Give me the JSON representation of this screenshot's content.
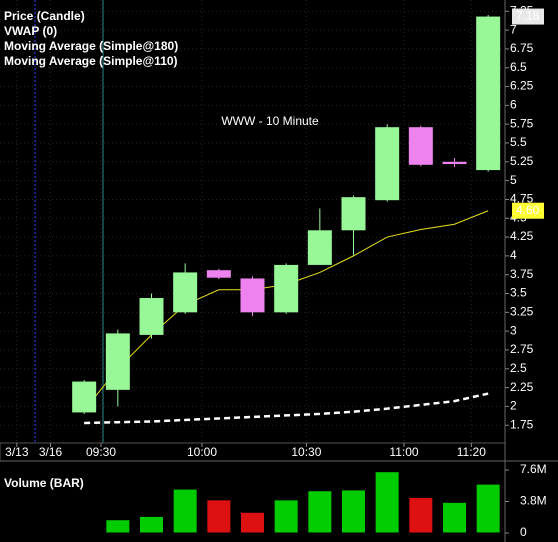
{
  "chart_data": [
    {
      "type": "candlestick",
      "legend": [
        {
          "name": "Price (Candle)",
          "color": "#ffffff"
        },
        {
          "name": "VWAP (0)",
          "color": "#ffff33"
        },
        {
          "name": "Moving Average (Simple@180)",
          "color": "#7fe0e0"
        },
        {
          "name": "Moving Average (Simple@110)",
          "color": "#ff7f27"
        }
      ],
      "watermark": "WWW - 10 Minute",
      "x": [
        0,
        1,
        2,
        3,
        4,
        5,
        6,
        7,
        8,
        9,
        10,
        11,
        12
      ],
      "open": [
        1.92,
        2.22,
        2.95,
        3.25,
        3.81,
        3.7,
        3.25,
        3.88,
        4.34,
        4.74,
        5.71,
        5.25,
        5.14
      ],
      "high": [
        2.35,
        3.02,
        3.5,
        3.9,
        3.83,
        3.73,
        3.9,
        4.63,
        4.8,
        5.75,
        5.73,
        5.3,
        7.2
      ],
      "low": [
        1.9,
        2.0,
        2.9,
        3.23,
        3.69,
        3.2,
        3.23,
        3.88,
        4.0,
        4.72,
        5.19,
        5.18,
        5.12
      ],
      "close": [
        2.33,
        2.97,
        3.44,
        3.78,
        3.71,
        3.25,
        3.88,
        4.34,
        4.78,
        5.71,
        5.21,
        5.22,
        7.18
      ],
      "up_color": "#98f898",
      "down_color": "#ee82ee",
      "lines": [
        {
          "legend": 1,
          "color": "#e8e020",
          "dash": false,
          "values": [
            1.95,
            2.5,
            2.95,
            3.35,
            3.55,
            3.55,
            3.62,
            3.78,
            4.0,
            4.25,
            4.35,
            4.42,
            4.6
          ]
        },
        {
          "legend": 2,
          "color": "#ffffff",
          "dash": true,
          "values": [
            1.78,
            1.79,
            1.8,
            1.82,
            1.84,
            1.86,
            1.88,
            1.9,
            1.93,
            1.97,
            2.02,
            2.07,
            2.17
          ]
        }
      ],
      "last_price": 7.18,
      "vwap_last": {
        "value": 4.6,
        "label": "4.60"
      },
      "xlim": [
        -2.5,
        12.5
      ],
      "xticks": [
        {
          "value": -2,
          "label": "3/13"
        },
        {
          "value": -1,
          "label": "3/16"
        },
        {
          "value": 0.5,
          "label": "09:30"
        },
        {
          "value": 3.5,
          "label": "10:00"
        },
        {
          "value": 6.6,
          "label": "10:30"
        },
        {
          "value": 9.5,
          "label": "11:00"
        },
        {
          "value": 11.5,
          "label": "11:20"
        }
      ],
      "ylim": [
        1.62,
        7.4
      ],
      "yticks": [
        1.75,
        2,
        2.25,
        2.5,
        2.75,
        3,
        3.25,
        3.5,
        3.75,
        4,
        4.25,
        4.5,
        4.75,
        5,
        5.25,
        5.5,
        5.75,
        6,
        6.25,
        6.5,
        6.75,
        7,
        7.25
      ],
      "grid": true
    },
    {
      "type": "bar",
      "title": "Volume (BAR)",
      "values": [
        null,
        1600000,
        2000000,
        5300000,
        4000000,
        2500000,
        4000000,
        5100000,
        5200000,
        7400000,
        4300000,
        3700000,
        5900000
      ],
      "colors": [
        "#00cc00",
        "#00cc00",
        "#00cc00",
        "#00cc00",
        "#dd1111",
        "#dd1111",
        "#00cc00",
        "#00cc00",
        "#00cc00",
        "#00cc00",
        "#dd1111",
        "#00cc00",
        "#00cc00"
      ],
      "ylim": [
        0,
        8570000
      ],
      "yticks": [
        0,
        {
          "value": 3800000,
          "label": "3.8M"
        },
        {
          "value": 7600000,
          "label": "7.6M"
        }
      ]
    }
  ]
}
